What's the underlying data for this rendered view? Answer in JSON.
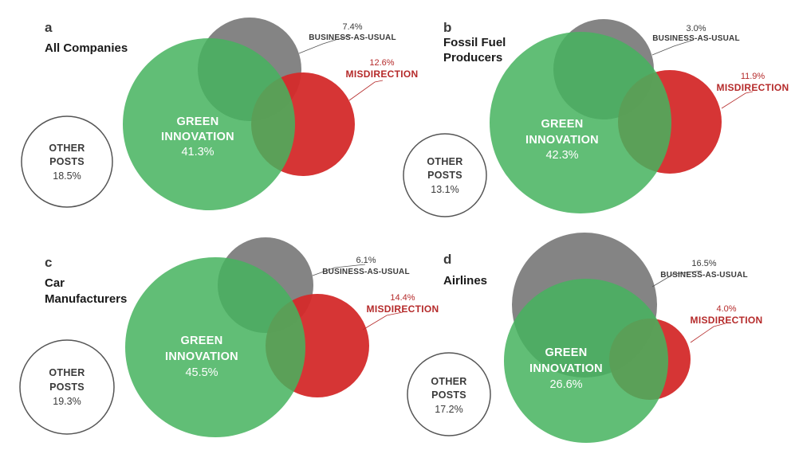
{
  "colors": {
    "green": "#45b35e",
    "grey": "#6e6e6e",
    "red": "#d42a2a",
    "red_text": "#b52a2a",
    "other_outline": "#555555"
  },
  "panels": [
    {
      "letter": "a",
      "title_lines": [
        "All Companies"
      ],
      "green": {
        "label_lines": [
          "GREEN",
          "INNOVATION"
        ],
        "value": "41.3%"
      },
      "grey": {
        "label": "BUSINESS-AS-USUAL",
        "value": "7.4%"
      },
      "red": {
        "label": "MISDIRECTION",
        "value": "12.6%"
      },
      "other": {
        "label_lines": [
          "OTHER",
          "POSTS"
        ],
        "value": "18.5%"
      }
    },
    {
      "letter": "b",
      "title_lines": [
        "Fossil Fuel",
        "Producers"
      ],
      "green": {
        "label_lines": [
          "GREEN",
          "INNOVATION"
        ],
        "value": "42.3%"
      },
      "grey": {
        "label": "BUSINESS-AS-USUAL",
        "value": "3.0%"
      },
      "red": {
        "label": "MISDIRECTION",
        "value": "11.9%"
      },
      "other": {
        "label_lines": [
          "OTHER",
          "POSTS"
        ],
        "value": "13.1%"
      }
    },
    {
      "letter": "c",
      "title_lines": [
        "Car",
        "Manufacturers"
      ],
      "green": {
        "label_lines": [
          "GREEN",
          "INNOVATION"
        ],
        "value": "45.5%"
      },
      "grey": {
        "label": "BUSINESS-AS-USUAL",
        "value": "6.1%"
      },
      "red": {
        "label": "MISDIRECTION",
        "value": "14.4%"
      },
      "other": {
        "label_lines": [
          "OTHER",
          "POSTS"
        ],
        "value": "19.3%"
      }
    },
    {
      "letter": "d",
      "title_lines": [
        "Airlines"
      ],
      "green": {
        "label_lines": [
          "GREEN",
          "INNOVATION"
        ],
        "value": "26.6%"
      },
      "grey": {
        "label": "BUSINESS-AS-USUAL",
        "value": "16.5%"
      },
      "red": {
        "label": "MISDIRECTION",
        "value": "4.0%"
      },
      "other": {
        "label_lines": [
          "OTHER",
          "POSTS"
        ],
        "value": "17.2%"
      }
    }
  ]
}
